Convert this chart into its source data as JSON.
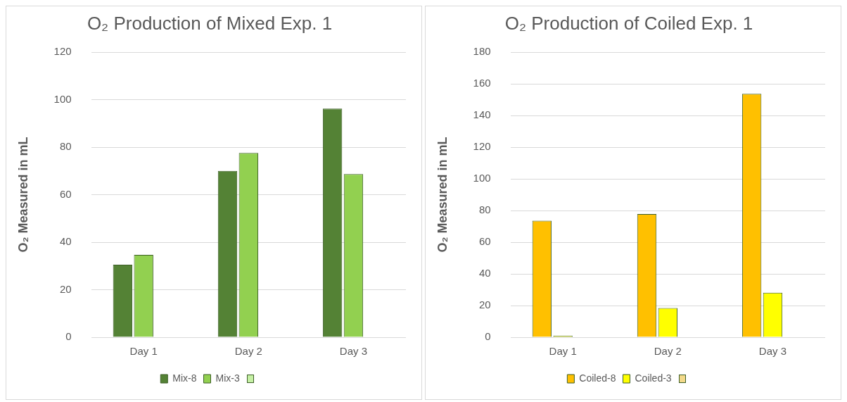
{
  "chart_data": [
    {
      "type": "bar",
      "title": "O₂ Production of Mixed Exp. 1",
      "ylabel": "O₂ Measured in mL",
      "categories": [
        "Day 1",
        "Day 2",
        "Day 3"
      ],
      "series": [
        {
          "name": "Mix-8",
          "color": "#548235",
          "values": [
            30.5,
            70,
            96.3
          ]
        },
        {
          "name": "Mix-3",
          "color": "#92d050",
          "values": [
            34.7,
            77.6,
            68.7
          ]
        },
        {
          "color": "#c5f0a4",
          "values": [
            null,
            null,
            null
          ]
        }
      ],
      "ylim": [
        0,
        120
      ],
      "yticks": [
        0,
        20,
        40,
        60,
        80,
        100,
        120
      ],
      "grid": "y",
      "legend": "bottom"
    },
    {
      "type": "bar",
      "title": "O₂ Production of Coiled Exp. 1",
      "ylabel": "O₂ Measured in mL",
      "categories": [
        "Day 1",
        "Day 2",
        "Day 3"
      ],
      "series": [
        {
          "name": "Coiled-8",
          "color": "#ffc000",
          "values": [
            73.6,
            77.8,
            153.7
          ]
        },
        {
          "name": "Coiled-3",
          "color": "#ffff00",
          "values": [
            1,
            18.4,
            28.1
          ]
        },
        {
          "color": "#f3d98a",
          "values": [
            null,
            null,
            null
          ]
        }
      ],
      "ylim": [
        0,
        180
      ],
      "yticks": [
        0,
        20,
        40,
        60,
        80,
        100,
        120,
        140,
        160,
        180
      ],
      "grid": "y",
      "legend": "bottom"
    }
  ]
}
